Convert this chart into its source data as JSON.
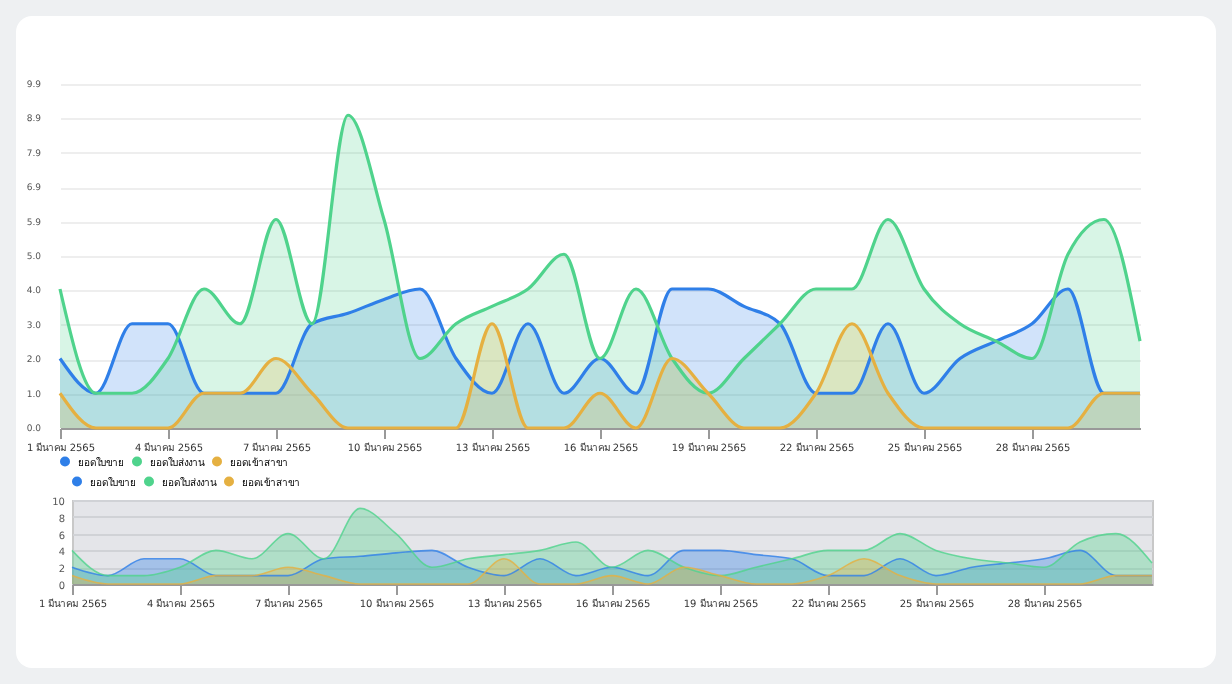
{
  "chart_data": [
    {
      "type": "area",
      "categories": [
        "1 มีนาคม 2565",
        null,
        null,
        "4 มีนาคม 2565",
        null,
        null,
        "7 มีนาคม 2565",
        null,
        null,
        "10 มีนาคม 2565",
        null,
        null,
        "13 มีนาคม 2565",
        null,
        null,
        "16 มีนาคม 2565",
        null,
        null,
        "19 มีนาคม 2565",
        null,
        null,
        "22 มีนาคม 2565",
        null,
        null,
        "25 มีนาคม 2565",
        null,
        null,
        "28 มีนาคม 2565",
        null,
        null,
        null
      ],
      "series": [
        {
          "name": "ยอดใบขาย",
          "color": "#2f7fe8",
          "values": [
            2,
            1,
            3,
            3,
            1,
            1,
            1,
            3,
            3.3,
            3.7,
            4,
            2,
            1,
            3,
            1,
            2,
            1,
            4,
            4,
            3.5,
            3,
            1,
            1,
            3,
            1,
            2,
            2.5,
            3,
            4,
            1,
            1
          ]
        },
        {
          "name": "ยอดใบส่งงาน",
          "color": "#4fd38c",
          "values": [
            4,
            1,
            1,
            2,
            4,
            3,
            6,
            3,
            9,
            6,
            2,
            3,
            3.5,
            4,
            5,
            2,
            4,
            2,
            1,
            2,
            3,
            4,
            4,
            6,
            4,
            3,
            2.5,
            2,
            5,
            6,
            2.5
          ]
        },
        {
          "name": "ยอดเข้าสาขา",
          "color": "#e5b041",
          "values": [
            1,
            0,
            0,
            0,
            1,
            1,
            2,
            1,
            0,
            0,
            0,
            0,
            3,
            0,
            0,
            1,
            0,
            2,
            1,
            0,
            0,
            1,
            3,
            1,
            0,
            0,
            0,
            0,
            0,
            1,
            1
          ]
        }
      ],
      "ylim": [
        0,
        9.9
      ],
      "yticks": [
        {
          "value": 0,
          "label": "0.0"
        },
        {
          "value": 0.99,
          "label": "1.0"
        },
        {
          "value": 1.98,
          "label": "2.0"
        },
        {
          "value": 2.97,
          "label": "3.0"
        },
        {
          "value": 3.96,
          "label": "4.0"
        },
        {
          "value": 4.95,
          "label": "5.0"
        },
        {
          "value": 5.94,
          "label": "5.9"
        },
        {
          "value": 6.93,
          "label": "6.9"
        },
        {
          "value": 7.92,
          "label": "7.9"
        },
        {
          "value": 8.91,
          "label": "8.9"
        },
        {
          "value": 9.9,
          "label": "9.9"
        }
      ],
      "grid": "y",
      "legend": "bottom"
    },
    {
      "type": "area",
      "categories": [
        "1 มีนาคม 2565",
        null,
        null,
        "4 มีนาคม 2565",
        null,
        null,
        "7 มีนาคม 2565",
        null,
        null,
        "10 มีนาคม 2565",
        null,
        null,
        "13 มีนาคม 2565",
        null,
        null,
        "16 มีนาคม 2565",
        null,
        null,
        "19 มีนาคม 2565",
        null,
        null,
        "22 มีนาคม 2565",
        null,
        null,
        "25 มีนาคม 2565",
        null,
        null,
        "28 มีนาคม 2565",
        null,
        null,
        null
      ],
      "series": [
        {
          "name": "ยอดใบขาย",
          "color": "#2f7fe8",
          "values": [
            2,
            1,
            3,
            3,
            1,
            1,
            1,
            3,
            3.3,
            3.7,
            4,
            2,
            1,
            3,
            1,
            2,
            1,
            4,
            4,
            3.5,
            3,
            1,
            1,
            3,
            1,
            2,
            2.5,
            3,
            4,
            1,
            1
          ]
        },
        {
          "name": "ยอดใบส่งงาน",
          "color": "#4fd38c",
          "values": [
            4,
            1,
            1,
            2,
            4,
            3,
            6,
            3,
            9,
            6,
            2,
            3,
            3.5,
            4,
            5,
            2,
            4,
            2,
            1,
            2,
            3,
            4,
            4,
            6,
            4,
            3,
            2.5,
            2,
            5,
            6,
            2.5
          ]
        },
        {
          "name": "ยอดเข้าสาขา",
          "color": "#e5b041",
          "values": [
            1,
            0,
            0,
            0,
            1,
            1,
            2,
            1,
            0,
            0,
            0,
            0,
            3,
            0,
            0,
            1,
            0,
            2,
            1,
            0,
            0,
            1,
            3,
            1,
            0,
            0,
            0,
            0,
            0,
            1,
            1
          ]
        }
      ],
      "ylim": [
        0,
        10
      ],
      "yticks": [
        0,
        2,
        4,
        6,
        8,
        10
      ],
      "grid": "y",
      "legend": "top left"
    }
  ]
}
